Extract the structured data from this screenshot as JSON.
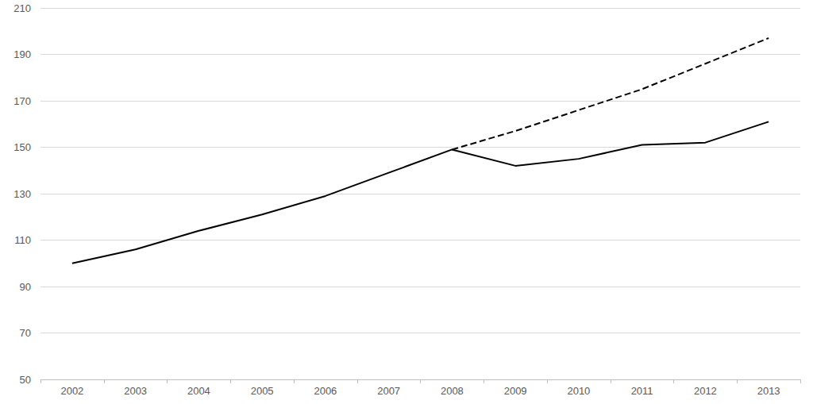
{
  "chart_data": {
    "type": "line",
    "categories": [
      "2002",
      "2003",
      "2004",
      "2005",
      "2006",
      "2007",
      "2008",
      "2009",
      "2010",
      "2011",
      "2012",
      "2013"
    ],
    "series": [
      {
        "color": "#000000",
        "line_style": "solid",
        "values": [
          100,
          106,
          114,
          121,
          129,
          139,
          149,
          142,
          145,
          151,
          152,
          161
        ]
      },
      {
        "color": "#000000",
        "line_style": "dashed",
        "values": [
          null,
          null,
          null,
          null,
          null,
          null,
          149,
          157,
          166,
          175,
          186,
          197
        ]
      }
    ],
    "ylim": [
      50,
      210
    ],
    "yticks": [
      50,
      70,
      90,
      110,
      130,
      150,
      170,
      190,
      210
    ],
    "grid": true
  }
}
